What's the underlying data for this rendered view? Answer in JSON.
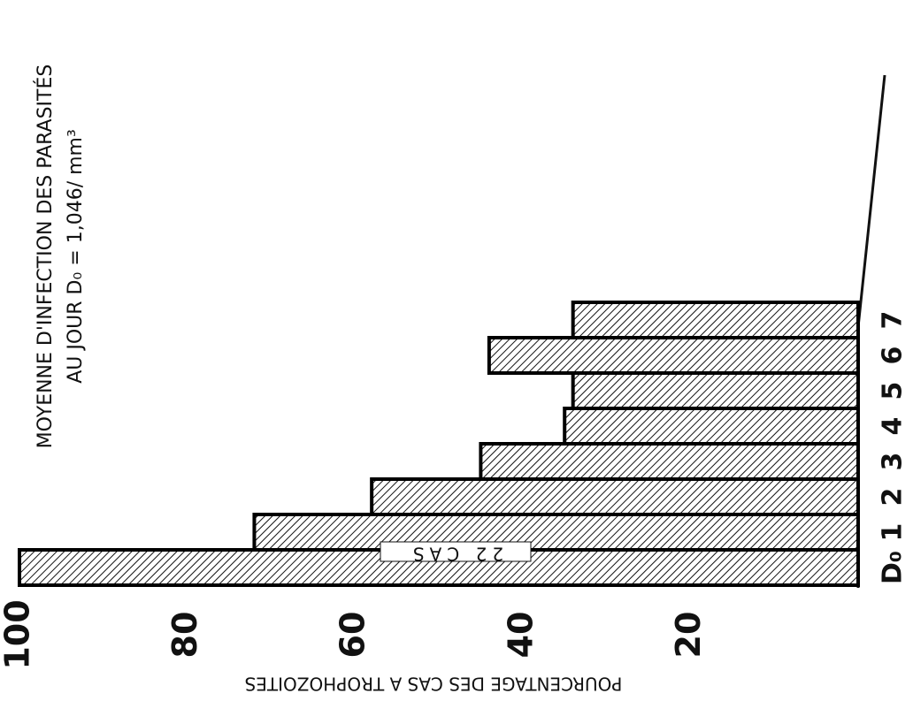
{
  "chart_data": {
    "type": "bar",
    "orientation": "horizontal",
    "title": [
      "MOYENNE D'INFECTION DES PARASITÉS",
      "AU JOUR D₀ = 1,046/ mm³"
    ],
    "annotation": "22 CAS",
    "xlabel": "POURCENTAGE DES CAS A TROPHOZOITES",
    "categories": [
      "D₀",
      "1",
      "2",
      "3",
      "4",
      "5",
      "6",
      "7"
    ],
    "values": [
      100,
      72,
      58,
      45,
      35,
      34,
      44,
      34
    ],
    "color": "#000000",
    "xlim": [
      0,
      100
    ],
    "xticks": [
      20,
      40,
      60,
      80,
      100
    ]
  }
}
